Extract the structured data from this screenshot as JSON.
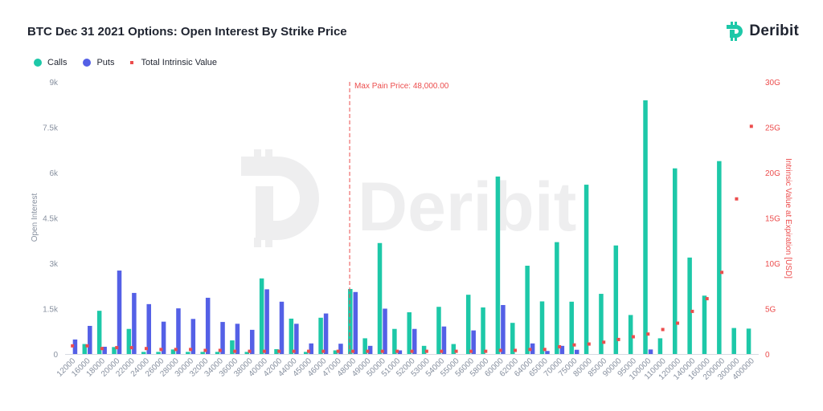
{
  "header": {
    "title": "BTC Dec 31 2021 Options: Open Interest By Strike Price",
    "brand": "Deribit"
  },
  "watermark": {
    "text": "Deribit"
  },
  "legend": {
    "calls": "Calls",
    "puts": "Puts",
    "intrinsic": "Total Intrinsic Value"
  },
  "colors": {
    "calls": "#1dc8a8",
    "puts": "#5460e6",
    "intrinsic": "#ec4d4d",
    "axis_text": "#8891a0",
    "right_axis_text": "#ec4d4d",
    "brand_icon": "#1dc8a8"
  },
  "chart_data": {
    "type": "bar",
    "categories": [
      "12000",
      "16000",
      "18000",
      "20000",
      "22000",
      "24000",
      "26000",
      "28000",
      "30000",
      "32000",
      "34000",
      "36000",
      "38000",
      "40000",
      "42000",
      "44000",
      "45000",
      "46000",
      "47000",
      "48000",
      "49000",
      "50000",
      "51000",
      "52000",
      "53000",
      "54000",
      "55000",
      "56000",
      "58000",
      "60000",
      "62000",
      "64000",
      "65000",
      "70000",
      "75000",
      "80000",
      "85000",
      "90000",
      "95000",
      "100000",
      "110000",
      "120000",
      "140000",
      "160000",
      "200000",
      "300000",
      "400000"
    ],
    "series": [
      {
        "name": "Calls",
        "axis": "left",
        "values": [
          0,
          330,
          1430,
          230,
          830,
          70,
          70,
          150,
          70,
          70,
          70,
          450,
          70,
          2500,
          160,
          1170,
          70,
          1200,
          120,
          2150,
          520,
          3670,
          830,
          1380,
          270,
          1560,
          330,
          1960,
          1540,
          5870,
          1030,
          2920,
          1740,
          3700,
          1730,
          5600,
          1990,
          3590,
          1290,
          8390,
          520,
          6140,
          3190,
          1930,
          6380,
          860,
          840
        ]
      },
      {
        "name": "Puts",
        "axis": "left",
        "values": [
          480,
          930,
          240,
          2760,
          2020,
          1650,
          1070,
          1510,
          1160,
          1860,
          1060,
          1000,
          800,
          2140,
          1730,
          1000,
          350,
          1340,
          340,
          2050,
          270,
          1500,
          120,
          830,
          0,
          910,
          0,
          780,
          0,
          1620,
          0,
          350,
          100,
          270,
          140,
          0,
          0,
          0,
          0,
          150,
          0,
          0,
          0,
          0,
          0,
          0,
          0
        ]
      },
      {
        "name": "Total Intrinsic Value",
        "axis": "right",
        "type": "scatter",
        "values": [
          0.9,
          0.9,
          0.6,
          0.7,
          0.7,
          0.6,
          0.5,
          0.5,
          0.5,
          0.4,
          0.4,
          0.3,
          0.3,
          0.3,
          0.3,
          0.3,
          0.3,
          0.3,
          0.3,
          0.3,
          0.3,
          0.3,
          0.3,
          0.3,
          0.3,
          0.3,
          0.3,
          0.3,
          0.3,
          0.4,
          0.4,
          0.5,
          0.5,
          0.8,
          1,
          1.1,
          1.3,
          1.6,
          1.9,
          2.2,
          2.7,
          3.4,
          4.7,
          6.1,
          9,
          17.1,
          25.1
        ]
      }
    ],
    "left_axis": {
      "label": "Open Interest",
      "ylim": [
        0,
        9000
      ],
      "ticks": [
        0,
        1500,
        3000,
        4500,
        6000,
        7500,
        9000
      ],
      "tick_labels": [
        "0",
        "1.5k",
        "3k",
        "4.5k",
        "6k",
        "7.5k",
        "9k"
      ]
    },
    "right_axis": {
      "label": "Intrinsic Value at Expiration [USD]",
      "ylim": [
        0,
        30
      ],
      "ticks": [
        0,
        5,
        10,
        15,
        20,
        25,
        30
      ],
      "tick_labels": [
        "0",
        "5G",
        "10G",
        "15G",
        "20G",
        "25G",
        "30G"
      ]
    },
    "annotation": {
      "text": "Max Pain Price: 48,000.00",
      "category": "48000"
    },
    "grid": false,
    "legend_position": "top-left"
  }
}
